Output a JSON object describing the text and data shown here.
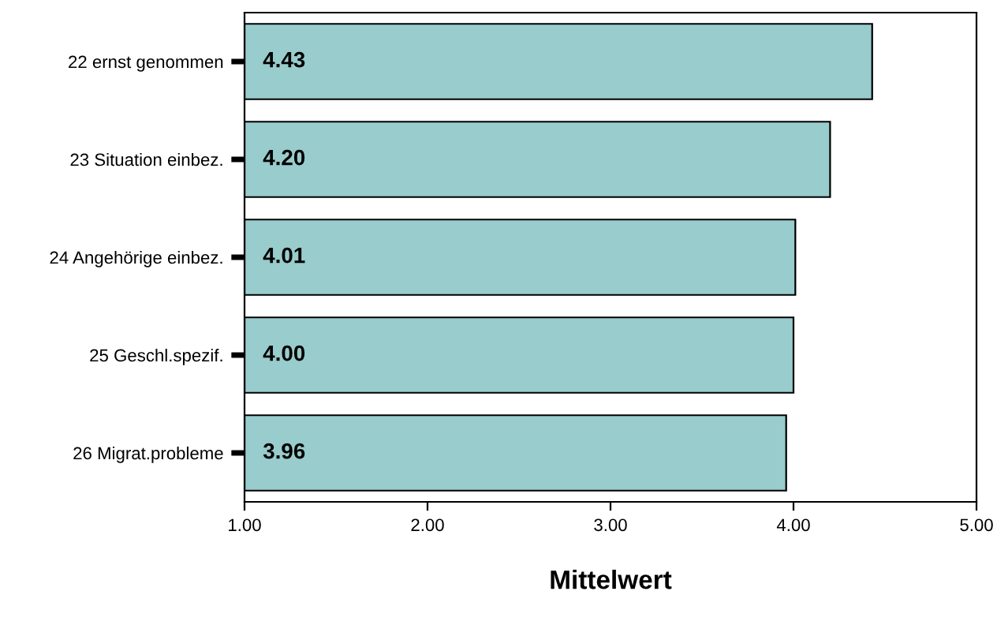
{
  "chart_data": {
    "type": "bar",
    "orientation": "horizontal",
    "xlabel": "Mittelwert",
    "categories": [
      "22 ernst genommen",
      "23 Situation einbez.",
      "24 Angehörige einbez.",
      "25 Geschl.spezif.",
      "26 Migrat.probleme"
    ],
    "values": [
      4.43,
      4.2,
      4.01,
      4.0,
      3.96
    ],
    "color": "#99cccc",
    "value_labels": [
      "4.43",
      "4.20",
      "4.01",
      "4.00",
      "3.96"
    ],
    "xlim": [
      1,
      5
    ],
    "xticks": [
      {
        "value": 1,
        "label": "1.00"
      },
      {
        "value": 2,
        "label": "2.00"
      },
      {
        "value": 3,
        "label": "3.00"
      },
      {
        "value": 4,
        "label": "4.00"
      },
      {
        "value": 5,
        "label": "5.00"
      }
    ],
    "grid": false
  }
}
